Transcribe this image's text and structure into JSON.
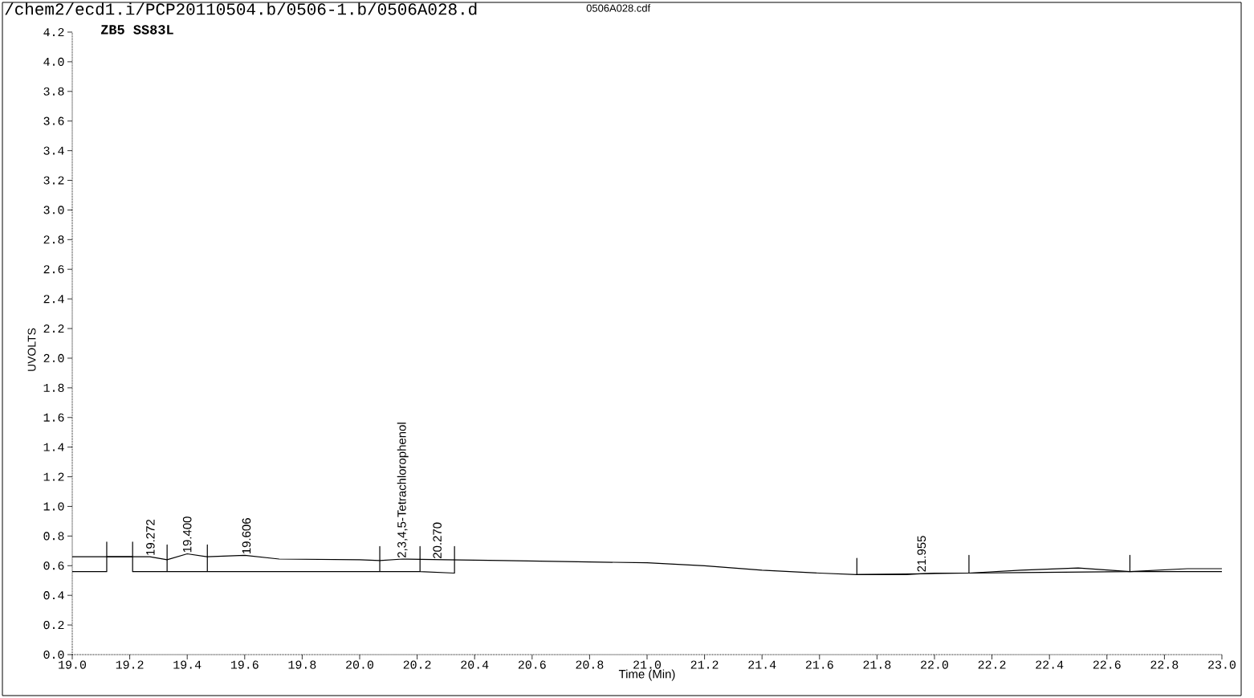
{
  "chart_data": {
    "type": "line",
    "title": "/chem2/ecd1.i/PCP20110504.b/0506-1.b/0506A028.d",
    "subtitle": "ZB5   SS83L",
    "xlabel": "Time (Min)",
    "ylabel": "UVOLTS",
    "xlim": [
      19.0,
      23.0
    ],
    "ylim": [
      0.0,
      4.2
    ],
    "xticks": [
      {
        "value": 19.0,
        "label": "19.0"
      },
      {
        "value": 19.2,
        "label": "19.2"
      },
      {
        "value": 19.4,
        "label": "19.4"
      },
      {
        "value": 19.6,
        "label": "19.6"
      },
      {
        "value": 19.8,
        "label": "19.8"
      },
      {
        "value": 20.0,
        "label": "20.0"
      },
      {
        "value": 20.2,
        "label": "20.2"
      },
      {
        "value": 20.4,
        "label": "20.4"
      },
      {
        "value": 20.6,
        "label": "20.6"
      },
      {
        "value": 20.8,
        "label": "20.8"
      },
      {
        "value": 21.0,
        "label": "21.0"
      },
      {
        "value": 21.2,
        "label": "21.2"
      },
      {
        "value": 21.4,
        "label": "21.4"
      },
      {
        "value": 21.6,
        "label": "21.6"
      },
      {
        "value": 21.8,
        "label": "21.8"
      },
      {
        "value": 22.0,
        "label": "22.0"
      },
      {
        "value": 22.2,
        "label": "22.2"
      },
      {
        "value": 22.4,
        "label": "22.4"
      },
      {
        "value": 22.6,
        "label": "22.6"
      },
      {
        "value": 22.8,
        "label": "22.8"
      },
      {
        "value": 23.0,
        "label": "23.0"
      }
    ],
    "yticks": [
      {
        "value": 0.0,
        "label": "0.0"
      },
      {
        "value": 0.2,
        "label": "0.2"
      },
      {
        "value": 0.4,
        "label": "0.4"
      },
      {
        "value": 0.6,
        "label": "0.6"
      },
      {
        "value": 0.8,
        "label": "0.8"
      },
      {
        "value": 1.0,
        "label": "1.0"
      },
      {
        "value": 1.2,
        "label": "1.2"
      },
      {
        "value": 1.4,
        "label": "1.4"
      },
      {
        "value": 1.6,
        "label": "1.6"
      },
      {
        "value": 1.8,
        "label": "1.8"
      },
      {
        "value": 2.0,
        "label": "2.0"
      },
      {
        "value": 2.2,
        "label": "2.2"
      },
      {
        "value": 2.4,
        "label": "2.4"
      },
      {
        "value": 2.6,
        "label": "2.6"
      },
      {
        "value": 2.8,
        "label": "2.8"
      },
      {
        "value": 3.0,
        "label": "3.0"
      },
      {
        "value": 3.2,
        "label": "3.2"
      },
      {
        "value": 3.4,
        "label": "3.4"
      },
      {
        "value": 3.6,
        "label": "3.6"
      },
      {
        "value": 3.8,
        "label": "3.8"
      },
      {
        "value": 4.0,
        "label": "4.0"
      },
      {
        "value": 4.2,
        "label": "4.2"
      }
    ],
    "series": [
      {
        "color": "#000000",
        "x": [
          19.0,
          19.1,
          19.27,
          19.33,
          19.4,
          19.47,
          19.6,
          19.72,
          20.0,
          20.07,
          20.15,
          20.3,
          20.5,
          20.8,
          21.0,
          21.2,
          21.4,
          21.6,
          21.73,
          21.9,
          22.0,
          22.12,
          22.3,
          22.5,
          22.68,
          22.8,
          23.0
        ],
        "values": [
          0.66,
          0.66,
          0.66,
          0.64,
          0.68,
          0.66,
          0.67,
          0.645,
          0.64,
          0.635,
          0.645,
          0.64,
          0.635,
          0.625,
          0.62,
          0.6,
          0.57,
          0.55,
          0.54,
          0.54,
          0.55,
          0.55,
          0.57,
          0.585,
          0.56,
          0.56,
          0.56
        ]
      },
      {
        "color": "#000000",
        "x": [
          19.0,
          19.12,
          19.12,
          19.12,
          19.21,
          19.21,
          19.21,
          19.33,
          19.33,
          19.33,
          19.47,
          19.47,
          19.47,
          20.07,
          20.07,
          20.07,
          20.21,
          20.21,
          20.21,
          20.33,
          20.33,
          20.33
        ],
        "values": [
          0.56,
          0.56,
          0.76,
          0.66,
          0.66,
          0.76,
          0.56,
          0.56,
          0.74,
          0.56,
          0.56,
          0.74,
          0.56,
          0.56,
          0.73,
          0.56,
          0.56,
          0.73,
          0.56,
          0.55,
          0.73,
          0.64
        ]
      },
      {
        "color": "#000000",
        "x": [
          21.73,
          21.73,
          21.73,
          22.12,
          22.12,
          22.12,
          22.68,
          22.68,
          22.68,
          22.88,
          23.0
        ],
        "values": [
          0.54,
          0.65,
          0.54,
          0.55,
          0.67,
          0.55,
          0.56,
          0.67,
          0.56,
          0.58,
          0.58
        ]
      }
    ],
    "annotations": [
      "0506A028.cdf",
      {
        "text": "19.272",
        "x": 19.272,
        "y": 0.66
      },
      {
        "text": "19.400",
        "x": 19.4,
        "y": 0.68
      },
      {
        "text": "19.606",
        "x": 19.606,
        "y": 0.67
      },
      {
        "text": "2,3,4,5-Tetrachlorophenol",
        "x": 20.15,
        "y": 0.645
      },
      {
        "text": "20.270",
        "x": 20.27,
        "y": 0.64
      },
      {
        "text": "21.955",
        "x": 21.955,
        "y": 0.55
      }
    ]
  }
}
